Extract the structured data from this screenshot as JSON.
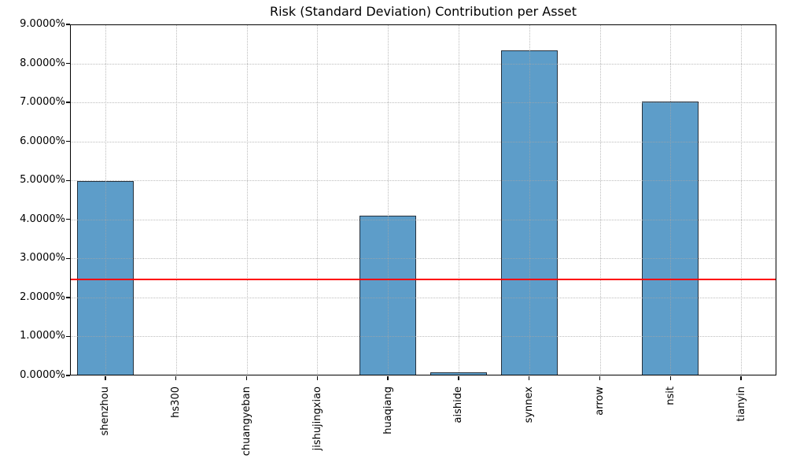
{
  "chart_data": {
    "type": "bar",
    "title": "Risk (Standard Deviation) Contribution per Asset",
    "xlabel": "",
    "ylabel": "",
    "categories": [
      "shenzhou",
      "hs300",
      "chuangyeban",
      "jishujingxiao",
      "huaqiang",
      "aishide",
      "synnex",
      "arrow",
      "nsit",
      "tianyin"
    ],
    "values": [
      4.98,
      0.0,
      0.0,
      0.0,
      4.09,
      0.09,
      8.34,
      0.0,
      7.03,
      0.0
    ],
    "value_unit": "percent",
    "ylim": [
      0,
      9
    ],
    "ytick_labels": [
      "0.0000%",
      "1.0000%",
      "2.0000%",
      "3.0000%",
      "4.0000%",
      "5.0000%",
      "6.0000%",
      "7.0000%",
      "8.0000%",
      "9.0000%"
    ],
    "x_tick_label_rotation": 90,
    "grid": "dotted, both axes, drawn over bars",
    "legend_position": "none",
    "reference_line": {
      "value": 2.48,
      "color": "#ff0000"
    },
    "colors": {
      "bar_fill": "#5d9dc9",
      "bar_edge": "#25313d",
      "grid": "#c6c6c6",
      "spine": "#000000",
      "background": "#ffffff",
      "text": "#000000"
    }
  }
}
